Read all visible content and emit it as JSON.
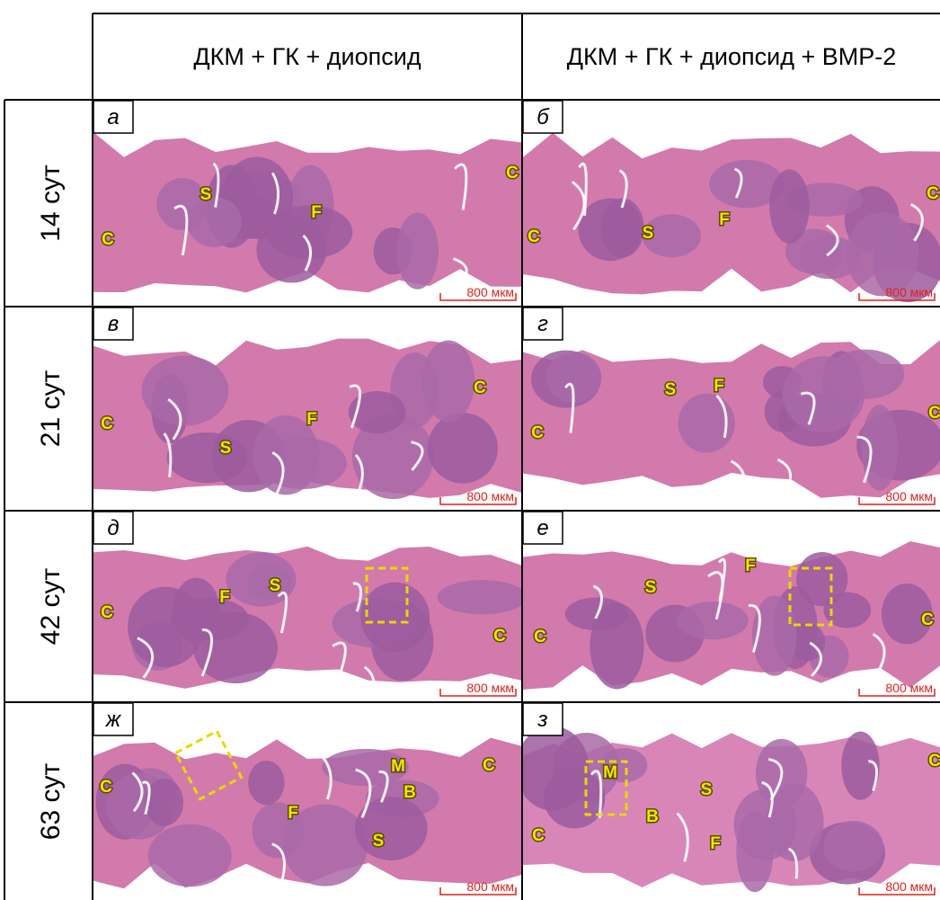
{
  "header": {
    "columns": [
      "ДКМ + ГК + диопсид",
      "ДКМ + ГК + диопсид + BMP-2"
    ]
  },
  "rows": [
    {
      "label": "14 сут",
      "panels": [
        {
          "letter": "а",
          "markers": [
            "S",
            "F",
            "C",
            "C"
          ],
          "scale_bar": "800 мкм"
        },
        {
          "letter": "б",
          "markers": [
            "S",
            "F",
            "C",
            "C"
          ],
          "scale_bar": "800 мкм"
        }
      ]
    },
    {
      "label": "21 сут",
      "panels": [
        {
          "letter": "в",
          "markers": [
            "F",
            "S",
            "C",
            "C"
          ],
          "scale_bar": "800 мкм"
        },
        {
          "letter": "г",
          "markers": [
            "S",
            "F",
            "C",
            "C"
          ],
          "scale_bar": "800 мкм"
        }
      ]
    },
    {
      "label": "42 сут",
      "panels": [
        {
          "letter": "д",
          "markers": [
            "F",
            "S",
            "C",
            "C"
          ],
          "scale_bar": "800 мкм"
        },
        {
          "letter": "е",
          "markers": [
            "F",
            "S",
            "C",
            "C"
          ],
          "scale_bar": "800 мкм"
        }
      ]
    },
    {
      "label": "63 сут",
      "panels": [
        {
          "letter": "ж",
          "markers": [
            "M",
            "B",
            "C",
            "C",
            "F",
            "S"
          ],
          "scale_bar": "800 мкм"
        },
        {
          "letter": "з",
          "markers": [
            "M",
            "S",
            "B",
            "F",
            "C",
            "C"
          ],
          "scale_bar": "800 мкм"
        }
      ]
    }
  ]
}
